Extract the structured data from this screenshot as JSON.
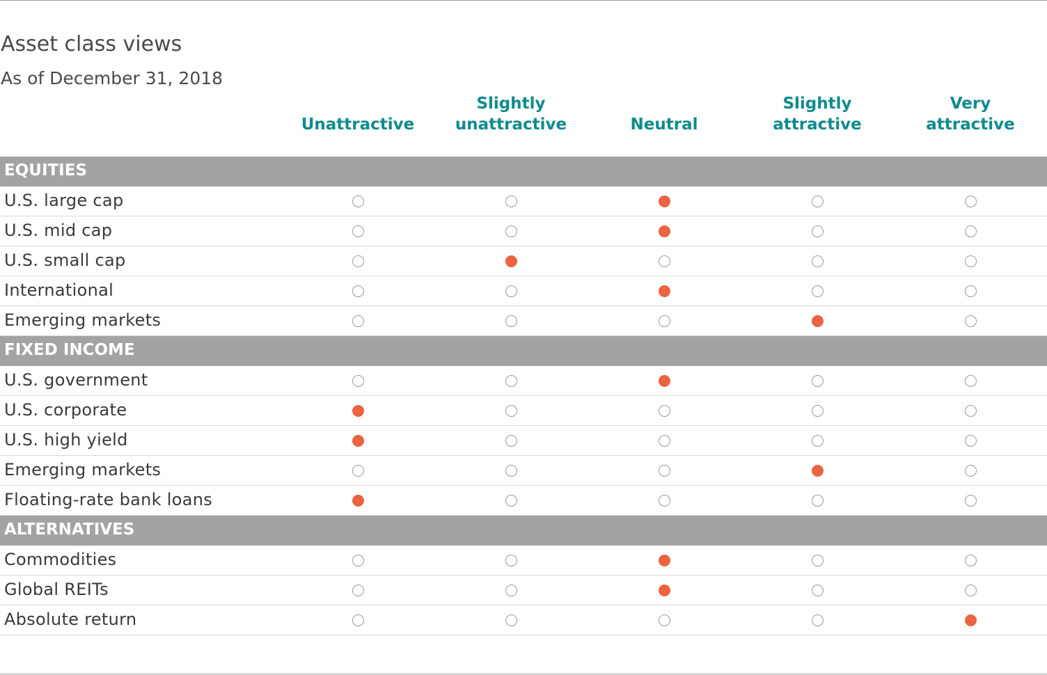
{
  "title": "Asset class views",
  "subtitle": "As of December 31, 2018",
  "colors": {
    "header_text": "#0f8b8d",
    "section_bar": "#a3a3a1",
    "selected_dot": "#e9643f",
    "empty_dot_border": "#9a9a98"
  },
  "chart_data": {
    "type": "table",
    "title": "Asset class views",
    "subtitle": "As of December 31, 2018",
    "columns": [
      [
        "Unattractive"
      ],
      [
        "Slightly",
        "unattractive"
      ],
      [
        "Neutral"
      ],
      [
        "Slightly",
        "attractive"
      ],
      [
        "Very",
        "attractive"
      ]
    ],
    "sections": [
      {
        "name": "EQUITIES",
        "rows": [
          {
            "label": "U.S. large cap",
            "view": 2
          },
          {
            "label": "U.S. mid cap",
            "view": 2
          },
          {
            "label": "U.S. small cap",
            "view": 1
          },
          {
            "label": "International",
            "view": 2
          },
          {
            "label": "Emerging markets",
            "view": 3
          }
        ]
      },
      {
        "name": "FIXED INCOME",
        "rows": [
          {
            "label": "U.S. government",
            "view": 2
          },
          {
            "label": "U.S. corporate",
            "view": 0
          },
          {
            "label": "U.S. high yield",
            "view": 0
          },
          {
            "label": "Emerging markets",
            "view": 3
          },
          {
            "label": "Floating-rate bank loans",
            "view": 0
          }
        ]
      },
      {
        "name": "ALTERNATIVES",
        "rows": [
          {
            "label": "Commodities",
            "view": 2
          },
          {
            "label": "Global REITs",
            "view": 2
          },
          {
            "label": "Absolute return",
            "view": 4
          }
        ]
      }
    ]
  }
}
